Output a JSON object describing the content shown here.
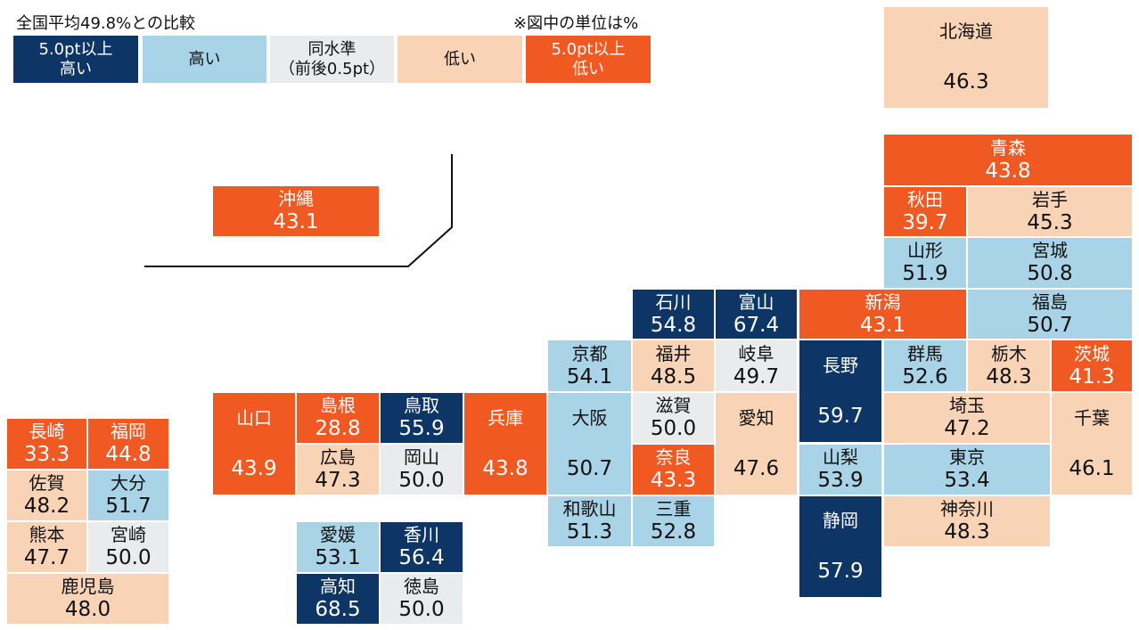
{
  "header": {
    "title": "全国平均49.8%との比較",
    "unit_note": "※図中の単位は%"
  },
  "colors": {
    "much_higher": "#0d3565",
    "higher": "#a9d3e6",
    "same": "#e9ebed",
    "lower": "#f8d3b6",
    "much_lower": "#f05a22"
  },
  "legend": [
    {
      "cls": "much_higher",
      "lines": [
        "5.0pt以上",
        "高い"
      ]
    },
    {
      "cls": "higher",
      "lines": [
        "高い"
      ]
    },
    {
      "cls": "same",
      "lines": [
        "同水準",
        "（前後0.5pt）"
      ]
    },
    {
      "cls": "lower",
      "lines": [
        "低い"
      ]
    },
    {
      "cls": "much_lower",
      "lines": [
        "5.0pt以上",
        "低い"
      ]
    }
  ],
  "prefectures": {
    "hokkaido": {
      "name": "北海道",
      "value": "46.3"
    },
    "aomori": {
      "name": "青森",
      "value": "43.8"
    },
    "akita": {
      "name": "秋田",
      "value": "39.7"
    },
    "iwate": {
      "name": "岩手",
      "value": "45.3"
    },
    "yamagata": {
      "name": "山形",
      "value": "51.9"
    },
    "miyagi": {
      "name": "宮城",
      "value": "50.8"
    },
    "fukushima": {
      "name": "福島",
      "value": "50.7"
    },
    "niigata": {
      "name": "新潟",
      "value": "43.1"
    },
    "ishikawa": {
      "name": "石川",
      "value": "54.8"
    },
    "toyama": {
      "name": "富山",
      "value": "67.4"
    },
    "fukui": {
      "name": "福井",
      "value": "48.5"
    },
    "gifu": {
      "name": "岐阜",
      "value": "49.7"
    },
    "nagano": {
      "name": "長野",
      "value": "59.7"
    },
    "gunma": {
      "name": "群馬",
      "value": "52.6"
    },
    "tochigi": {
      "name": "栃木",
      "value": "48.3"
    },
    "ibaraki": {
      "name": "茨城",
      "value": "41.3"
    },
    "kyoto": {
      "name": "京都",
      "value": "54.1"
    },
    "shiga": {
      "name": "滋賀",
      "value": "50.0"
    },
    "aichi": {
      "name": "愛知",
      "value": "47.6"
    },
    "saitama": {
      "name": "埼玉",
      "value": "47.2"
    },
    "chiba": {
      "name": "千葉",
      "value": "46.1"
    },
    "yamanashi": {
      "name": "山梨",
      "value": "53.9"
    },
    "tokyo": {
      "name": "東京",
      "value": "53.4"
    },
    "shizuoka": {
      "name": "静岡",
      "value": "57.9"
    },
    "kanagawa": {
      "name": "神奈川",
      "value": "48.3"
    },
    "osaka": {
      "name": "大阪",
      "value": "50.7"
    },
    "nara": {
      "name": "奈良",
      "value": "43.3"
    },
    "wakayama": {
      "name": "和歌山",
      "value": "51.3"
    },
    "mie": {
      "name": "三重",
      "value": "52.8"
    },
    "hyogo": {
      "name": "兵庫",
      "value": "43.8"
    },
    "tottori": {
      "name": "鳥取",
      "value": "55.9"
    },
    "okayama": {
      "name": "岡山",
      "value": "50.0"
    },
    "shimane": {
      "name": "島根",
      "value": "28.8"
    },
    "hiroshima": {
      "name": "広島",
      "value": "47.3"
    },
    "yamaguchi": {
      "name": "山口",
      "value": "43.9"
    },
    "ehime": {
      "name": "愛媛",
      "value": "53.1"
    },
    "kagawa": {
      "name": "香川",
      "value": "56.4"
    },
    "kochi": {
      "name": "高知",
      "value": "68.5"
    },
    "tokushima": {
      "name": "徳島",
      "value": "50.0"
    },
    "nagasaki": {
      "name": "長崎",
      "value": "33.3"
    },
    "fukuoka": {
      "name": "福岡",
      "value": "44.8"
    },
    "saga": {
      "name": "佐賀",
      "value": "48.2"
    },
    "oita": {
      "name": "大分",
      "value": "51.7"
    },
    "kumamoto": {
      "name": "熊本",
      "value": "47.7"
    },
    "miyazaki": {
      "name": "宮崎",
      "value": "50.0"
    },
    "kagoshima": {
      "name": "鹿児島",
      "value": "48.0"
    },
    "okinawa": {
      "name": "沖縄",
      "value": "43.1"
    }
  }
}
